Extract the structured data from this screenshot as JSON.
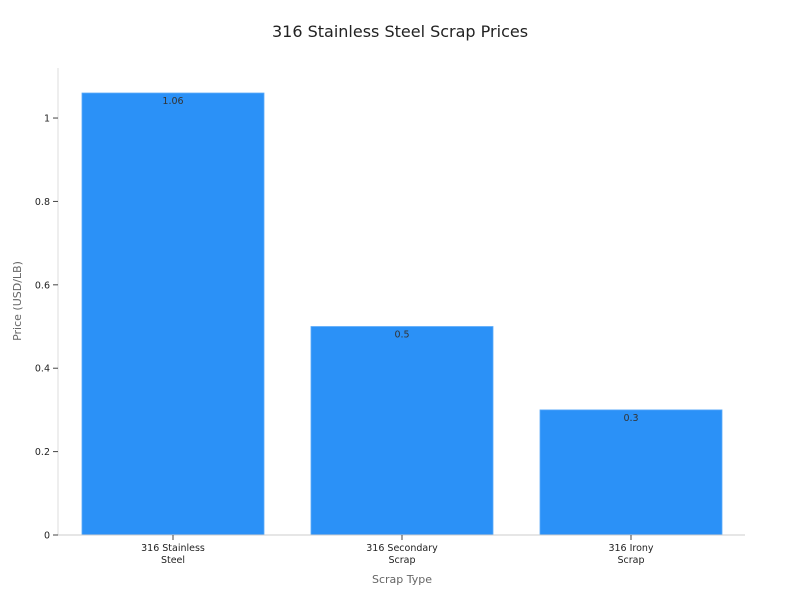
{
  "chart_data": {
    "type": "bar",
    "title": "316 Stainless Steel Scrap Prices",
    "xlabel": "Scrap Type",
    "ylabel": "Price (USD/LB)",
    "categories": [
      [
        "316 Stainless",
        "Steel"
      ],
      [
        "316 Secondary",
        "Scrap"
      ],
      [
        "316 Irony",
        "Scrap"
      ]
    ],
    "values": [
      1.06,
      0.5,
      0.3
    ],
    "data_labels": [
      "1.06",
      "0.5",
      "0.3"
    ],
    "ylim": [
      0,
      1.12
    ],
    "yticks": [
      0,
      0.2,
      0.4,
      0.6,
      0.8,
      1
    ],
    "ytick_labels": [
      "0",
      "0.2",
      "0.4",
      "0.6",
      "0.8",
      "1"
    ],
    "grid": false,
    "bar_color": "#2b91f7"
  }
}
